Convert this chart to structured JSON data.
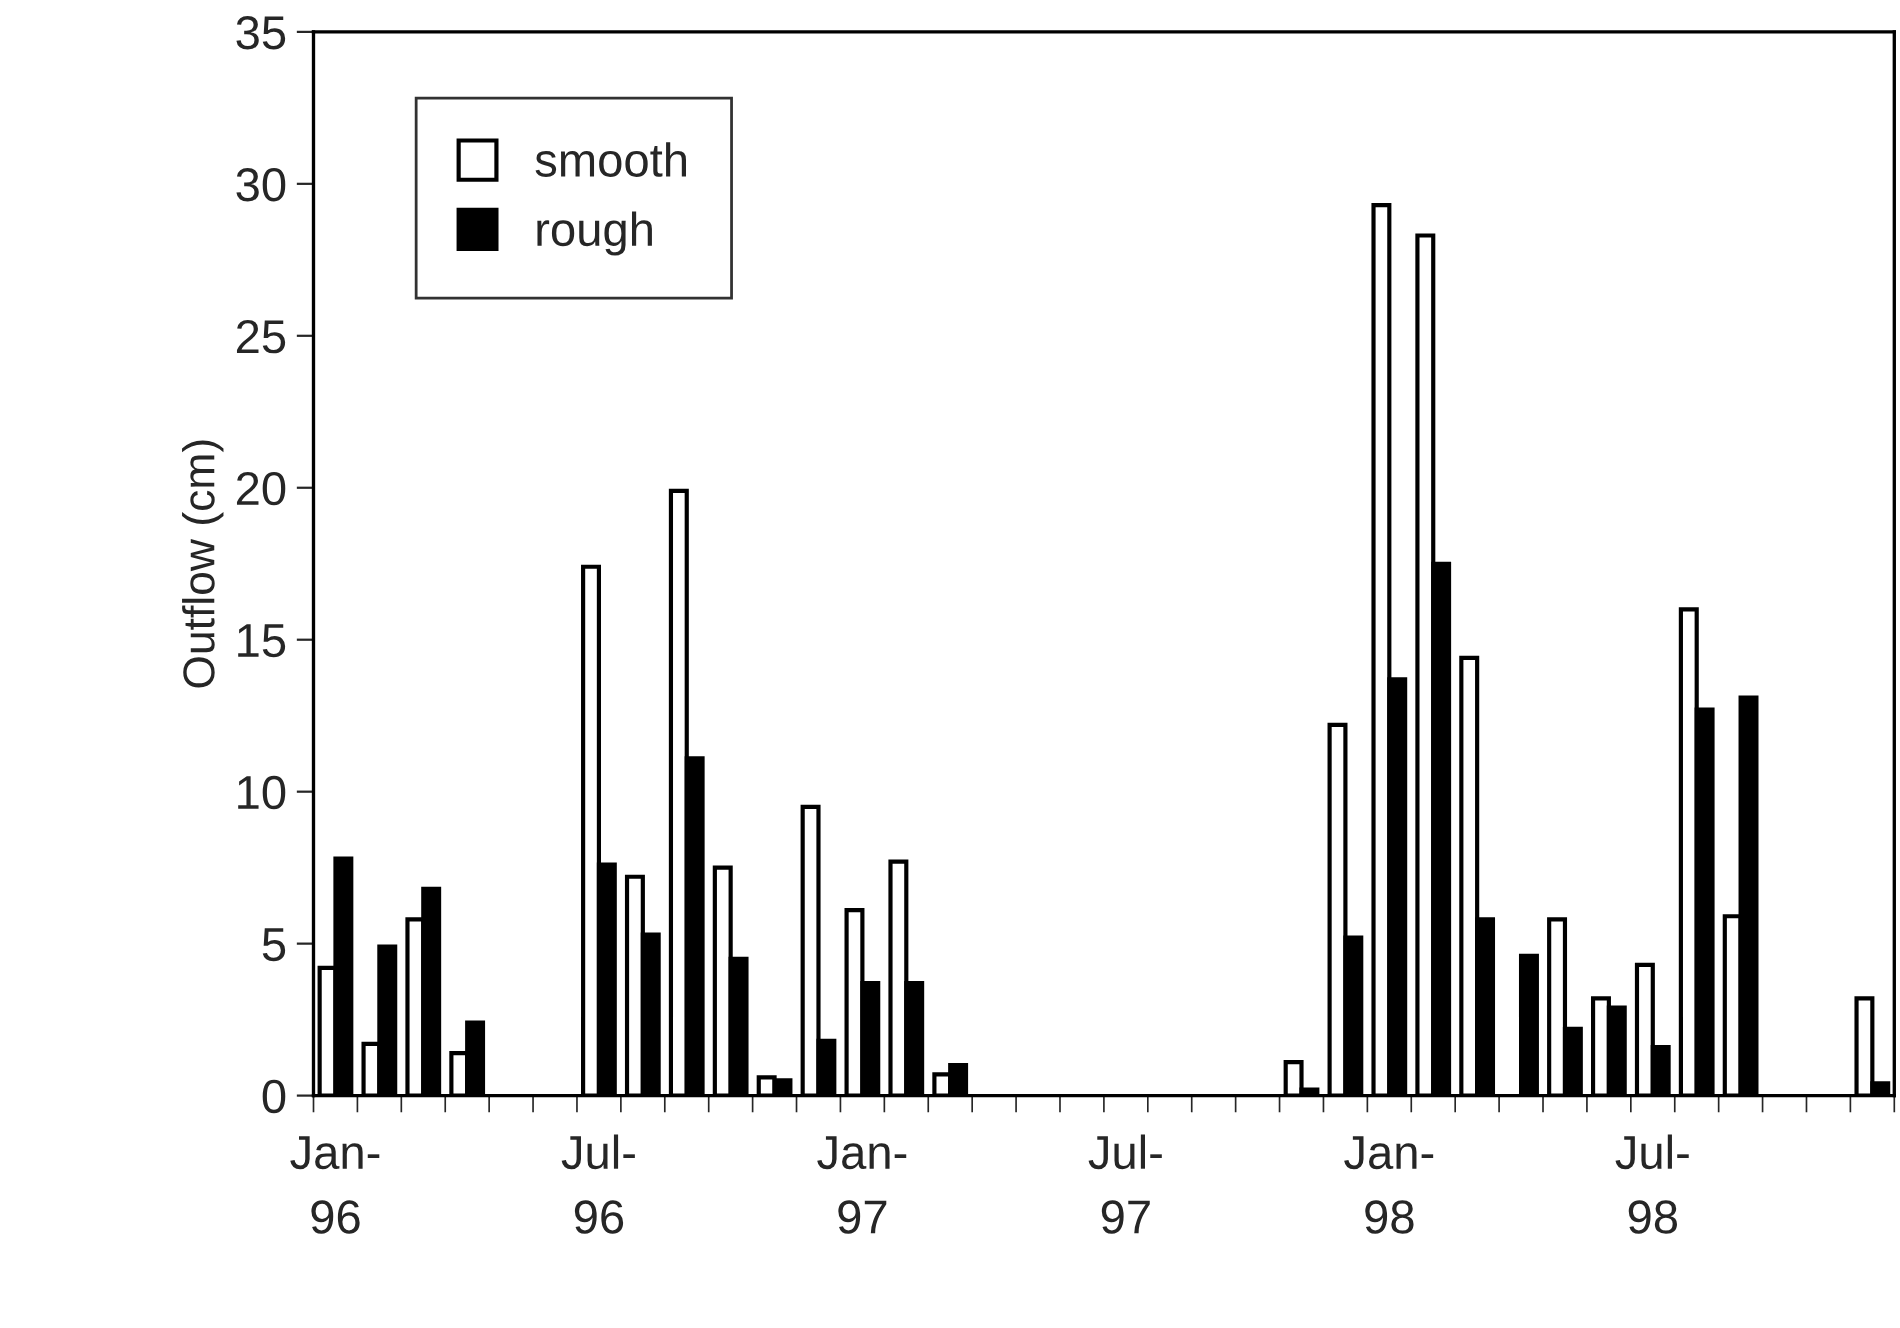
{
  "chart_data": {
    "type": "bar",
    "ylabel": "Outflow (cm)",
    "categories": [
      "Jan-\n96",
      null,
      null,
      null,
      null,
      null,
      "Jul-\n96",
      null,
      null,
      null,
      null,
      null,
      "Jan-\n97",
      null,
      null,
      null,
      null,
      null,
      "Jul-\n97",
      null,
      null,
      null,
      null,
      null,
      "Jan-\n98",
      null,
      null,
      null,
      null,
      null,
      "Jul-\n98",
      null,
      null,
      null,
      null,
      null
    ],
    "series": [
      {
        "name": "smooth",
        "color": "#ffffff",
        "values": [
          4.2,
          1.7,
          5.8,
          1.4,
          null,
          null,
          17.4,
          7.2,
          19.9,
          7.5,
          0.6,
          9.5,
          6.1,
          7.7,
          0.7,
          null,
          null,
          null,
          null,
          null,
          null,
          null,
          1.1,
          12.2,
          29.3,
          28.3,
          14.4,
          null,
          5.8,
          3.2,
          4.3,
          16.0,
          5.9,
          null,
          null,
          3.2
        ]
      },
      {
        "name": "rough",
        "color": "#000000",
        "values": [
          7.8,
          4.9,
          6.8,
          2.4,
          null,
          null,
          7.6,
          5.3,
          11.1,
          4.5,
          0.5,
          1.8,
          3.7,
          3.7,
          1.0,
          null,
          null,
          null,
          null,
          null,
          null,
          null,
          0.2,
          5.2,
          13.7,
          17.5,
          5.8,
          4.6,
          2.2,
          2.9,
          1.6,
          12.7,
          13.1,
          null,
          null,
          0.4
        ]
      }
    ],
    "ylim": [
      0,
      35
    ],
    "yticks": [
      0,
      5,
      10,
      15,
      20,
      25,
      30,
      35
    ],
    "grid": false,
    "legend": "top left"
  }
}
